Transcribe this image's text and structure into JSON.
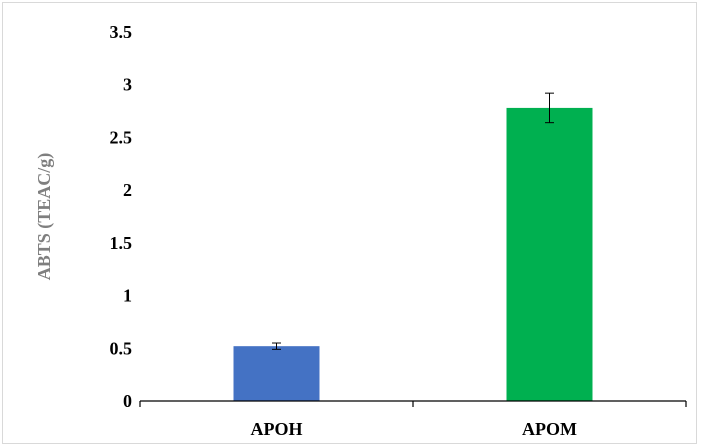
{
  "chart_data": {
    "type": "bar",
    "title": "",
    "xlabel": "",
    "ylabel": "ABTS (TEAC/g)",
    "categories": [
      "APOH",
      "APOM"
    ],
    "values": [
      0.52,
      2.78
    ],
    "error": [
      0.03,
      0.14
    ],
    "colors": [
      "#4472c4",
      "#00b050"
    ],
    "ylim": [
      0,
      3.5
    ],
    "yticks": [
      0,
      0.5,
      1,
      1.5,
      2,
      2.5,
      3,
      3.5
    ],
    "ytick_labels": [
      "0",
      "0.5",
      "1",
      "1.5",
      "2",
      "2.5",
      "3",
      "3.5"
    ],
    "grid": false,
    "legend": false
  }
}
